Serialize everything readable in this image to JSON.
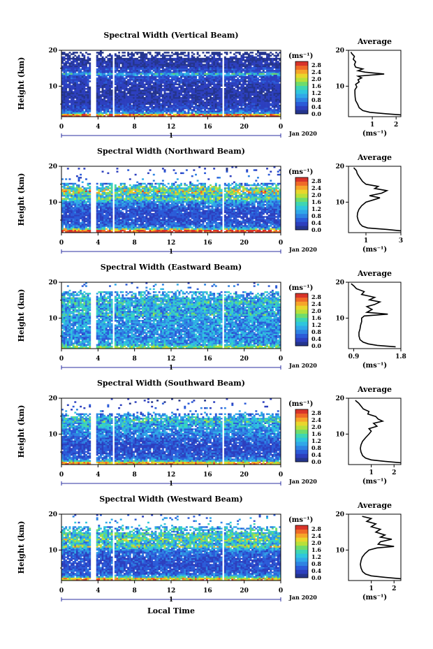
{
  "chart_data": {
    "type": "heatmap",
    "xlabel": "Local Time",
    "date_label": "Jan 2020",
    "day_label": "1",
    "x_ticks": [
      "0",
      "4",
      "8",
      "12",
      "16",
      "20",
      "0"
    ],
    "xlim": [
      0,
      24
    ],
    "ylabel": "Height (km)",
    "y_ticks": [
      "10",
      "20"
    ],
    "ylim": [
      1.5,
      20
    ],
    "colorbar": {
      "unit_label": "(ms⁻¹)",
      "ticks": [
        "0.0",
        "0.4",
        "0.8",
        "1.2",
        "1.6",
        "2.0",
        "2.4",
        "2.8"
      ],
      "range": [
        0,
        3.0
      ],
      "colors": [
        "#24358d",
        "#2c3fbe",
        "#2b5bd8",
        "#2e83e2",
        "#30a8e8",
        "#2fc6dd",
        "#3fd6b2",
        "#6fdc6c",
        "#b8e03a",
        "#e9d62c",
        "#f6a52a",
        "#ef6a27",
        "#d8342a"
      ]
    },
    "data_gaps_hours": [
      [
        3.3,
        3.9
      ],
      [
        5.6,
        5.85
      ],
      [
        17.6,
        17.85
      ]
    ],
    "average_panel": {
      "title": "Average",
      "xlabel": "(ms⁻¹)"
    },
    "panels": [
      {
        "title": "Spectral Width (Vertical Beam)",
        "top_km": 19.5,
        "avg_xlim": [
          0,
          2.2
        ],
        "avg_xticks": [
          {
            "v": 1,
            "label": "1"
          },
          {
            "v": 2,
            "label": "2"
          }
        ],
        "profile": [
          [
            2.0,
            2.8
          ],
          [
            2.3,
            1.6
          ],
          [
            2.7,
            0.9
          ],
          [
            3.2,
            0.6
          ],
          [
            4,
            0.45
          ],
          [
            5,
            0.38
          ],
          [
            6,
            0.3
          ],
          [
            7,
            0.28
          ],
          [
            8,
            0.27
          ],
          [
            9,
            0.27
          ],
          [
            9.8,
            0.35
          ],
          [
            10.5,
            0.3
          ],
          [
            11.2,
            0.45
          ],
          [
            11.8,
            0.4
          ],
          [
            12.3,
            0.55
          ],
          [
            12.8,
            0.4
          ],
          [
            13.4,
            1.5
          ],
          [
            13.9,
            0.7
          ],
          [
            14.3,
            0.4
          ],
          [
            14.8,
            0.6
          ],
          [
            15.3,
            0.3
          ],
          [
            16,
            0.25
          ],
          [
            16.8,
            0.3
          ],
          [
            17.5,
            0.2
          ],
          [
            18.3,
            0.25
          ],
          [
            19,
            0.15
          ],
          [
            19.5,
            0.1
          ]
        ]
      },
      {
        "title": "Spectral Width (Northward Beam)",
        "top_km": 15.5,
        "avg_xlim": [
          0,
          3.0
        ],
        "avg_xticks": [
          {
            "v": 1,
            "label": "1"
          },
          {
            "v": 3,
            "label": "3"
          }
        ],
        "profile": [
          [
            2.0,
            3.0
          ],
          [
            2.4,
            2.2
          ],
          [
            2.8,
            1.1
          ],
          [
            3.3,
            0.8
          ],
          [
            4,
            0.65
          ],
          [
            5,
            0.55
          ],
          [
            6,
            0.5
          ],
          [
            7,
            0.52
          ],
          [
            8,
            0.6
          ],
          [
            9,
            0.75
          ],
          [
            10,
            1.0
          ],
          [
            10.6,
            1.4
          ],
          [
            11.2,
            1.8
          ],
          [
            11.8,
            1.2
          ],
          [
            12.5,
            1.9
          ],
          [
            13.2,
            2.2
          ],
          [
            13.8,
            1.5
          ],
          [
            14.4,
            1.7
          ],
          [
            15,
            1.0
          ],
          [
            15.8,
            0.8
          ],
          [
            16.5,
            0.7
          ],
          [
            17.2,
            0.6
          ],
          [
            18,
            0.5
          ],
          [
            18.8,
            0.45
          ],
          [
            19.6,
            0.3
          ]
        ]
      },
      {
        "title": "Spectral Width (Eastward Beam)",
        "top_km": 17.5,
        "avg_xlim": [
          0.8,
          1.8
        ],
        "avg_xticks": [
          {
            "v": 0.9,
            "label": "0.9"
          },
          {
            "v": 1.8,
            "label": "1.8"
          }
        ],
        "profile": [
          [
            2.0,
            1.7
          ],
          [
            2.4,
            1.35
          ],
          [
            2.8,
            1.18
          ],
          [
            3.3,
            1.08
          ],
          [
            4,
            1.02
          ],
          [
            5,
            1.0
          ],
          [
            6,
            1.0
          ],
          [
            7,
            1.02
          ],
          [
            8,
            1.03
          ],
          [
            9,
            1.05
          ],
          [
            10,
            1.05
          ],
          [
            10.6,
            1.1
          ],
          [
            11.1,
            1.55
          ],
          [
            11.6,
            1.15
          ],
          [
            12.4,
            1.25
          ],
          [
            13.2,
            1.15
          ],
          [
            13.8,
            1.3
          ],
          [
            14.5,
            1.4
          ],
          [
            15.1,
            1.2
          ],
          [
            15.8,
            1.3
          ],
          [
            16.6,
            1.05
          ],
          [
            17.4,
            1.1
          ],
          [
            18.2,
            0.95
          ],
          [
            19,
            0.9
          ],
          [
            19.6,
            0.85
          ]
        ]
      },
      {
        "title": "Spectral Width (Southward Beam)",
        "top_km": 16.0,
        "avg_xlim": [
          0,
          2.3
        ],
        "avg_xticks": [
          {
            "v": 1,
            "label": "1"
          },
          {
            "v": 2,
            "label": "2"
          }
        ],
        "profile": [
          [
            2.0,
            2.3
          ],
          [
            2.4,
            1.6
          ],
          [
            2.8,
            1.0
          ],
          [
            3.3,
            0.75
          ],
          [
            4,
            0.62
          ],
          [
            5,
            0.55
          ],
          [
            6,
            0.52
          ],
          [
            7,
            0.55
          ],
          [
            8,
            0.62
          ],
          [
            9,
            0.75
          ],
          [
            10,
            0.9
          ],
          [
            10.8,
            1.0
          ],
          [
            11.5,
            0.9
          ],
          [
            12.2,
            1.25
          ],
          [
            13,
            1.1
          ],
          [
            13.6,
            1.5
          ],
          [
            14.2,
            1.3
          ],
          [
            14.9,
            1.2
          ],
          [
            15.6,
            0.85
          ],
          [
            16.3,
            0.9
          ],
          [
            17,
            0.65
          ],
          [
            17.8,
            0.55
          ],
          [
            18.6,
            0.45
          ],
          [
            19.4,
            0.3
          ]
        ]
      },
      {
        "title": "Spectral Width (Westward Beam)",
        "top_km": 16.5,
        "avg_xlim": [
          0,
          2.3
        ],
        "avg_xticks": [
          {
            "v": 1,
            "label": "1"
          },
          {
            "v": 2,
            "label": "2"
          }
        ],
        "profile": [
          [
            2.0,
            2.3
          ],
          [
            2.4,
            1.6
          ],
          [
            2.8,
            1.0
          ],
          [
            3.3,
            0.75
          ],
          [
            4,
            0.62
          ],
          [
            5,
            0.55
          ],
          [
            6,
            0.52
          ],
          [
            7,
            0.55
          ],
          [
            8,
            0.6
          ],
          [
            9,
            0.72
          ],
          [
            10,
            0.9
          ],
          [
            10.6,
            1.25
          ],
          [
            11,
            2.0
          ],
          [
            11.6,
            1.3
          ],
          [
            12.3,
            1.4
          ],
          [
            13,
            1.9
          ],
          [
            13.6,
            1.4
          ],
          [
            14.2,
            1.6
          ],
          [
            15,
            1.2
          ],
          [
            15.8,
            1.4
          ],
          [
            16.5,
            1.0
          ],
          [
            17.3,
            1.2
          ],
          [
            18,
            0.8
          ],
          [
            18.8,
            1.0
          ],
          [
            19.4,
            0.6
          ]
        ]
      }
    ]
  }
}
